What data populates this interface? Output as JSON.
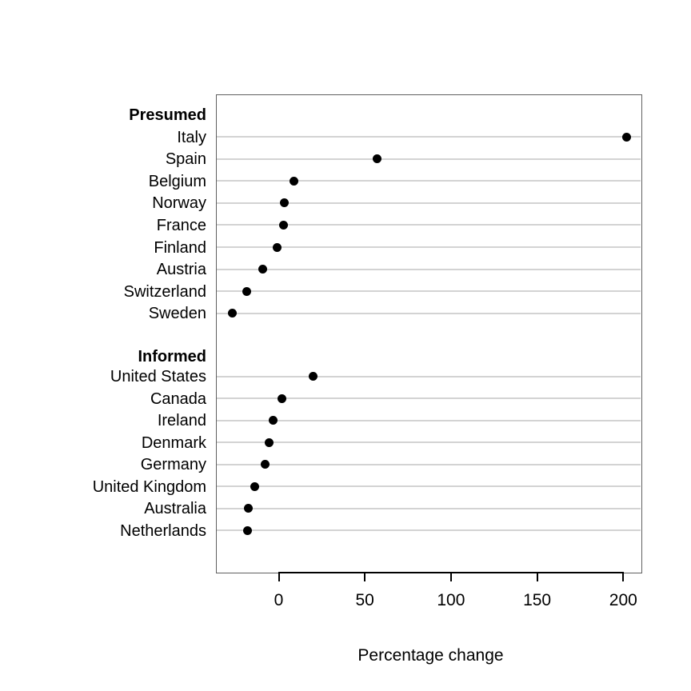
{
  "chart_data": {
    "type": "scatter",
    "subtype": "dotplot",
    "title": "",
    "xlabel": "Percentage change",
    "ylabel": "",
    "xlim": [
      -36,
      211
    ],
    "x_ticks": [
      0,
      50,
      100,
      150,
      200
    ],
    "grid": "horizontal-gridlines-at-data-rows",
    "legend_position": "none",
    "groups": [
      {
        "label": "Presumed",
        "items": [
          {
            "country": "Italy",
            "value": 202
          },
          {
            "country": "Spain",
            "value": 57.5
          },
          {
            "country": "Belgium",
            "value": 9
          },
          {
            "country": "Norway",
            "value": 3.3
          },
          {
            "country": "France",
            "value": 3.1
          },
          {
            "country": "Finland",
            "value": -0.5
          },
          {
            "country": "Austria",
            "value": -9.2
          },
          {
            "country": "Switzerland",
            "value": -18.3
          },
          {
            "country": "Sweden",
            "value": -26.7
          }
        ]
      },
      {
        "label": "Informed",
        "items": [
          {
            "country": "United States",
            "value": 20.2
          },
          {
            "country": "Canada",
            "value": 1.9
          },
          {
            "country": "Ireland",
            "value": -3.0
          },
          {
            "country": "Denmark",
            "value": -5.2
          },
          {
            "country": "Germany",
            "value": -7.7
          },
          {
            "country": "United Kingdom",
            "value": -13.6
          },
          {
            "country": "Australia",
            "value": -17.3
          },
          {
            "country": "Netherlands",
            "value": -17.8
          }
        ]
      }
    ],
    "colors": {
      "dot": "#000000",
      "gridline": "#d3d3d3",
      "box_border": "#5f5f5f",
      "axis_line": "#000000",
      "text": "#000000",
      "background": "#ffffff"
    }
  }
}
